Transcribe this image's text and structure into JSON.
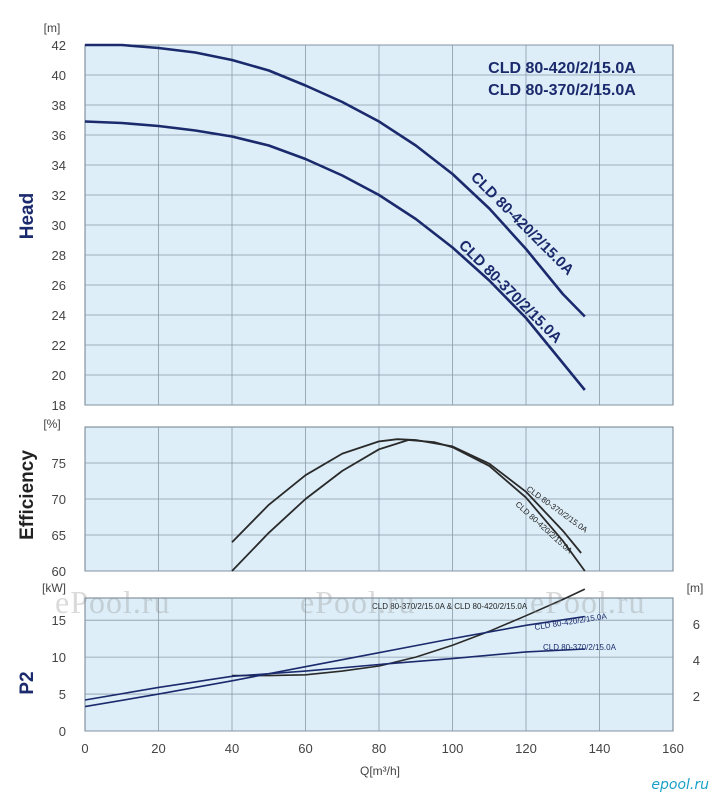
{
  "watermark": "ePool.ru",
  "watermark_small": "epool.ru",
  "colors": {
    "panel_bg": "#ddeef8",
    "grid": "#8a9aa8",
    "curve_navy": "#1a2a6c",
    "curve_dark": "#2a2a2a",
    "text_navy": "#1a2a6c",
    "tick": "#444444"
  },
  "x_axis": {
    "label": "Q[m³/h]",
    "ticks": [
      "0",
      "20",
      "40",
      "60",
      "80",
      "100",
      "120",
      "140",
      "160"
    ],
    "range": [
      0,
      160
    ]
  },
  "chart_data": [
    {
      "type": "line",
      "ylabel": "Head",
      "unit": "[m]",
      "ylim": [
        18,
        42
      ],
      "yticks": [
        "18",
        "20",
        "22",
        "24",
        "26",
        "28",
        "30",
        "32",
        "34",
        "36",
        "38",
        "40",
        "42"
      ],
      "legend": [
        "CLD 80-420/2/15.0A",
        "CLD 80-370/2/15.0A"
      ],
      "series": [
        {
          "name": "CLD 80-420/2/15.0A",
          "x": [
            0,
            10,
            20,
            30,
            40,
            50,
            60,
            70,
            80,
            90,
            100,
            110,
            120,
            130,
            136
          ],
          "y": [
            42,
            42,
            41.8,
            41.5,
            41,
            40.3,
            39.3,
            38.2,
            36.9,
            35.3,
            33.4,
            31.1,
            28.4,
            25.4,
            23.9
          ]
        },
        {
          "name": "CLD 80-370/2/15.0A",
          "x": [
            0,
            10,
            20,
            30,
            40,
            50,
            60,
            70,
            80,
            90,
            100,
            110,
            120,
            130,
            136
          ],
          "y": [
            36.9,
            36.8,
            36.6,
            36.3,
            35.9,
            35.3,
            34.4,
            33.3,
            32,
            30.4,
            28.5,
            26.3,
            23.8,
            20.8,
            19
          ]
        }
      ]
    },
    {
      "type": "line",
      "ylabel": "Efficiency",
      "unit": "[%]",
      "ylim": [
        60,
        80
      ],
      "yticks": [
        "60",
        "65",
        "70",
        "75"
      ],
      "series": [
        {
          "name": "CLD 80-370/2/15.0A",
          "x": [
            40,
            50,
            60,
            70,
            80,
            85,
            90,
            100,
            110,
            120,
            130,
            135
          ],
          "y": [
            64,
            69.2,
            73.3,
            76.3,
            78,
            78.3,
            78.2,
            77.3,
            74.9,
            71,
            65.6,
            62.5
          ]
        },
        {
          "name": "CLD 80-420/2/15.0A",
          "x": [
            40,
            50,
            60,
            70,
            80,
            88,
            95,
            100,
            110,
            120,
            130,
            136
          ],
          "y": [
            60,
            65.3,
            70,
            73.9,
            76.9,
            78.2,
            77.9,
            77.2,
            74.6,
            70.2,
            64.2,
            60
          ]
        }
      ]
    },
    {
      "type": "line",
      "ylabel": "P2",
      "unit": "[kW]",
      "ylim": [
        0,
        18
      ],
      "yticks": [
        "0",
        "5",
        "10",
        "15"
      ],
      "secondary_unit": "[m]",
      "secondary_yticks": [
        "2",
        "4",
        "6"
      ],
      "series": [
        {
          "name": "CLD 80-370/2/15.0A & CLD 80-420/2/15.0A",
          "x": [
            40,
            50,
            60,
            70,
            80,
            90,
            100,
            110,
            120,
            130,
            136
          ],
          "y": [
            7.5,
            7.5,
            7.6,
            8.1,
            8.8,
            10,
            11.6,
            13.5,
            15.6,
            17.8,
            19.2
          ]
        },
        {
          "name": "CLD 80-420/2/15.0A",
          "x": [
            0,
            20,
            40,
            60,
            80,
            100,
            120,
            136
          ],
          "y": [
            3.3,
            5,
            6.8,
            8.7,
            10.6,
            12.5,
            14.3,
            15.5
          ]
        },
        {
          "name": "CLD 80-370/2/15.0A",
          "x": [
            0,
            20,
            40,
            60,
            80,
            100,
            120,
            136
          ],
          "y": [
            4.2,
            5.9,
            7.4,
            8.1,
            9,
            9.8,
            10.7,
            11.1
          ]
        }
      ]
    }
  ]
}
